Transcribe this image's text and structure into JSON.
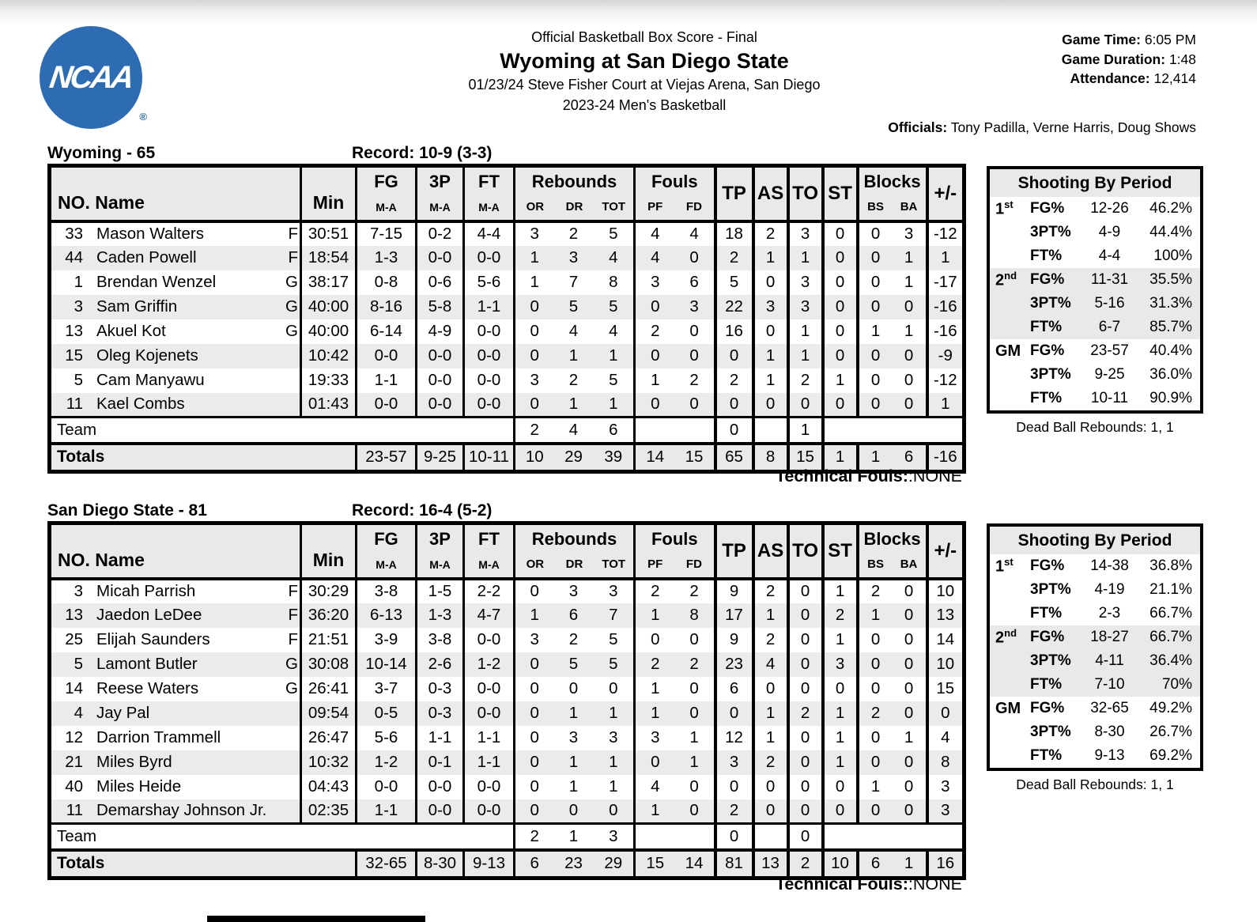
{
  "header": {
    "doc_type": "Official Basketball Box Score - Final",
    "title": "Wyoming at San Diego State",
    "venue_line": "01/23/24 Steve Fisher Court at Viejas Arena, San Diego",
    "season_line": "2023-24 Men's Basketball",
    "game_time_label": "Game Time:",
    "game_time": "6:05 PM",
    "game_duration_label": "Game Duration:",
    "game_duration": "1:48",
    "attendance_label": "Attendance:",
    "attendance": "12,414",
    "officials_label": "Officials:",
    "officials": "Tony Padilla, Verne Harris, Doug Shows",
    "logo_text": "NCAA",
    "logo_reg": "®",
    "logo_color": "#2d6cb3"
  },
  "columns": {
    "no_name": "NO. Name",
    "min": "Min",
    "fg": "FG",
    "p3": "3P",
    "ft": "FT",
    "ma": "M-A",
    "rebounds": "Rebounds",
    "or": "OR",
    "dr": "DR",
    "tot": "TOT",
    "fouls": "Fouls",
    "pf": "PF",
    "fd": "FD",
    "tp": "TP",
    "as": "AS",
    "to": "TO",
    "st": "ST",
    "blocks": "Blocks",
    "bs": "BS",
    "ba": "BA",
    "pm": "+/-"
  },
  "teams": [
    {
      "name_score": "Wyoming - 65",
      "record": "Record: 10-9 (3-3)",
      "players": [
        {
          "no": "33",
          "name": "Mason Walters",
          "pos": "F",
          "min": "30:51",
          "fg": "7-15",
          "p3": "0-2",
          "ft": "4-4",
          "or": "3",
          "dr": "2",
          "tot": "5",
          "pf": "4",
          "fd": "4",
          "tp": "18",
          "as": "2",
          "to": "3",
          "st": "0",
          "bs": "0",
          "ba": "3",
          "pm": "-12"
        },
        {
          "no": "44",
          "name": "Caden Powell",
          "pos": "F",
          "min": "18:54",
          "fg": "1-3",
          "p3": "0-0",
          "ft": "0-0",
          "or": "1",
          "dr": "3",
          "tot": "4",
          "pf": "4",
          "fd": "0",
          "tp": "2",
          "as": "1",
          "to": "1",
          "st": "0",
          "bs": "0",
          "ba": "1",
          "pm": "1"
        },
        {
          "no": "1",
          "name": "Brendan Wenzel",
          "pos": "G",
          "min": "38:17",
          "fg": "0-8",
          "p3": "0-6",
          "ft": "5-6",
          "or": "1",
          "dr": "7",
          "tot": "8",
          "pf": "3",
          "fd": "6",
          "tp": "5",
          "as": "0",
          "to": "3",
          "st": "0",
          "bs": "0",
          "ba": "1",
          "pm": "-17"
        },
        {
          "no": "3",
          "name": "Sam Griffin",
          "pos": "G",
          "min": "40:00",
          "fg": "8-16",
          "p3": "5-8",
          "ft": "1-1",
          "or": "0",
          "dr": "5",
          "tot": "5",
          "pf": "0",
          "fd": "3",
          "tp": "22",
          "as": "3",
          "to": "3",
          "st": "0",
          "bs": "0",
          "ba": "0",
          "pm": "-16"
        },
        {
          "no": "13",
          "name": "Akuel Kot",
          "pos": "G",
          "min": "40:00",
          "fg": "6-14",
          "p3": "4-9",
          "ft": "0-0",
          "or": "0",
          "dr": "4",
          "tot": "4",
          "pf": "2",
          "fd": "0",
          "tp": "16",
          "as": "0",
          "to": "1",
          "st": "0",
          "bs": "1",
          "ba": "1",
          "pm": "-16"
        },
        {
          "no": "15",
          "name": "Oleg Kojenets",
          "pos": "",
          "min": "10:42",
          "fg": "0-0",
          "p3": "0-0",
          "ft": "0-0",
          "or": "0",
          "dr": "1",
          "tot": "1",
          "pf": "0",
          "fd": "0",
          "tp": "0",
          "as": "1",
          "to": "1",
          "st": "0",
          "bs": "0",
          "ba": "0",
          "pm": "-9"
        },
        {
          "no": "5",
          "name": "Cam Manyawu",
          "pos": "",
          "min": "19:33",
          "fg": "1-1",
          "p3": "0-0",
          "ft": "0-0",
          "or": "3",
          "dr": "2",
          "tot": "5",
          "pf": "1",
          "fd": "2",
          "tp": "2",
          "as": "1",
          "to": "2",
          "st": "1",
          "bs": "0",
          "ba": "0",
          "pm": "-12"
        },
        {
          "no": "11",
          "name": "Kael Combs",
          "pos": "",
          "min": "01:43",
          "fg": "0-0",
          "p3": "0-0",
          "ft": "0-0",
          "or": "0",
          "dr": "1",
          "tot": "1",
          "pf": "0",
          "fd": "0",
          "tp": "0",
          "as": "0",
          "to": "0",
          "st": "0",
          "bs": "0",
          "ba": "0",
          "pm": "1"
        }
      ],
      "team_row": {
        "label": "Team",
        "or": "2",
        "dr": "4",
        "tot": "6",
        "tp": "0",
        "to": "1"
      },
      "totals": {
        "label": "Totals",
        "fg": "23-57",
        "p3": "9-25",
        "ft": "10-11",
        "or": "10",
        "dr": "29",
        "tot": "39",
        "pf": "14",
        "fd": "15",
        "tp": "65",
        "as": "8",
        "to": "15",
        "st": "1",
        "bs": "1",
        "ba": "6",
        "pm": "-16"
      },
      "technical_bold": "Technical Fouls:",
      "technical_value": ":NONE",
      "shooting": {
        "title": "Shooting By Period",
        "rows": [
          {
            "period": "1",
            "sup": "st",
            "stat": "FG%",
            "ma": "12-26",
            "pct": "46.2%",
            "shade": false
          },
          {
            "period": "",
            "sup": "",
            "stat": "3PT%",
            "ma": "4-9",
            "pct": "44.4%",
            "shade": false
          },
          {
            "period": "",
            "sup": "",
            "stat": "FT%",
            "ma": "4-4",
            "pct": "100%",
            "shade": false
          },
          {
            "period": "2",
            "sup": "nd",
            "stat": "FG%",
            "ma": "11-31",
            "pct": "35.5%",
            "shade": true
          },
          {
            "period": "",
            "sup": "",
            "stat": "3PT%",
            "ma": "5-16",
            "pct": "31.3%",
            "shade": true
          },
          {
            "period": "",
            "sup": "",
            "stat": "FT%",
            "ma": "6-7",
            "pct": "85.7%",
            "shade": true
          },
          {
            "period": "GM",
            "sup": "",
            "stat": "FG%",
            "ma": "23-57",
            "pct": "40.4%",
            "shade": false
          },
          {
            "period": "",
            "sup": "",
            "stat": "3PT%",
            "ma": "9-25",
            "pct": "36.0%",
            "shade": false
          },
          {
            "period": "",
            "sup": "",
            "stat": "FT%",
            "ma": "10-11",
            "pct": "90.9%",
            "shade": false
          }
        ]
      },
      "dead_ball": "Dead Ball Rebounds: 1, 1"
    },
    {
      "name_score": "San Diego State - 81",
      "record": "Record: 16-4 (5-2)",
      "players": [
        {
          "no": "3",
          "name": "Micah Parrish",
          "pos": "F",
          "min": "30:29",
          "fg": "3-8",
          "p3": "1-5",
          "ft": "2-2",
          "or": "0",
          "dr": "3",
          "tot": "3",
          "pf": "2",
          "fd": "2",
          "tp": "9",
          "as": "2",
          "to": "0",
          "st": "1",
          "bs": "2",
          "ba": "0",
          "pm": "10"
        },
        {
          "no": "13",
          "name": "Jaedon LeDee",
          "pos": "F",
          "min": "36:20",
          "fg": "6-13",
          "p3": "1-3",
          "ft": "4-7",
          "or": "1",
          "dr": "6",
          "tot": "7",
          "pf": "1",
          "fd": "8",
          "tp": "17",
          "as": "1",
          "to": "0",
          "st": "2",
          "bs": "1",
          "ba": "0",
          "pm": "13"
        },
        {
          "no": "25",
          "name": "Elijah Saunders",
          "pos": "F",
          "min": "21:51",
          "fg": "3-9",
          "p3": "3-8",
          "ft": "0-0",
          "or": "3",
          "dr": "2",
          "tot": "5",
          "pf": "0",
          "fd": "0",
          "tp": "9",
          "as": "2",
          "to": "0",
          "st": "1",
          "bs": "0",
          "ba": "0",
          "pm": "14"
        },
        {
          "no": "5",
          "name": "Lamont Butler",
          "pos": "G",
          "min": "30:08",
          "fg": "10-14",
          "p3": "2-6",
          "ft": "1-2",
          "or": "0",
          "dr": "5",
          "tot": "5",
          "pf": "2",
          "fd": "2",
          "tp": "23",
          "as": "4",
          "to": "0",
          "st": "3",
          "bs": "0",
          "ba": "0",
          "pm": "10"
        },
        {
          "no": "14",
          "name": "Reese Waters",
          "pos": "G",
          "min": "26:41",
          "fg": "3-7",
          "p3": "0-3",
          "ft": "0-0",
          "or": "0",
          "dr": "0",
          "tot": "0",
          "pf": "1",
          "fd": "0",
          "tp": "6",
          "as": "0",
          "to": "0",
          "st": "0",
          "bs": "0",
          "ba": "0",
          "pm": "15"
        },
        {
          "no": "4",
          "name": "Jay Pal",
          "pos": "",
          "min": "09:54",
          "fg": "0-5",
          "p3": "0-3",
          "ft": "0-0",
          "or": "0",
          "dr": "1",
          "tot": "1",
          "pf": "1",
          "fd": "0",
          "tp": "0",
          "as": "1",
          "to": "2",
          "st": "1",
          "bs": "2",
          "ba": "0",
          "pm": "0"
        },
        {
          "no": "12",
          "name": "Darrion Trammell",
          "pos": "",
          "min": "26:47",
          "fg": "5-6",
          "p3": "1-1",
          "ft": "1-1",
          "or": "0",
          "dr": "3",
          "tot": "3",
          "pf": "3",
          "fd": "1",
          "tp": "12",
          "as": "1",
          "to": "0",
          "st": "1",
          "bs": "0",
          "ba": "1",
          "pm": "4"
        },
        {
          "no": "21",
          "name": "Miles Byrd",
          "pos": "",
          "min": "10:32",
          "fg": "1-2",
          "p3": "0-1",
          "ft": "1-1",
          "or": "0",
          "dr": "1",
          "tot": "1",
          "pf": "0",
          "fd": "1",
          "tp": "3",
          "as": "2",
          "to": "0",
          "st": "1",
          "bs": "0",
          "ba": "0",
          "pm": "8"
        },
        {
          "no": "40",
          "name": "Miles Heide",
          "pos": "",
          "min": "04:43",
          "fg": "0-0",
          "p3": "0-0",
          "ft": "0-0",
          "or": "0",
          "dr": "1",
          "tot": "1",
          "pf": "4",
          "fd": "0",
          "tp": "0",
          "as": "0",
          "to": "0",
          "st": "0",
          "bs": "1",
          "ba": "0",
          "pm": "3"
        },
        {
          "no": "11",
          "name": "Demarshay Johnson Jr.",
          "pos": "",
          "min": "02:35",
          "fg": "1-1",
          "p3": "0-0",
          "ft": "0-0",
          "or": "0",
          "dr": "0",
          "tot": "0",
          "pf": "1",
          "fd": "0",
          "tp": "2",
          "as": "0",
          "to": "0",
          "st": "0",
          "bs": "0",
          "ba": "0",
          "pm": "3"
        }
      ],
      "team_row": {
        "label": "Team",
        "or": "2",
        "dr": "1",
        "tot": "3",
        "tp": "0",
        "to": "0"
      },
      "totals": {
        "label": "Totals",
        "fg": "32-65",
        "p3": "8-30",
        "ft": "9-13",
        "or": "6",
        "dr": "23",
        "tot": "29",
        "pf": "15",
        "fd": "14",
        "tp": "81",
        "as": "13",
        "to": "2",
        "st": "10",
        "bs": "6",
        "ba": "1",
        "pm": "16"
      },
      "technical_bold": "Technical Fouls:",
      "technical_value": ":NONE",
      "shooting": {
        "title": "Shooting By Period",
        "rows": [
          {
            "period": "1",
            "sup": "st",
            "stat": "FG%",
            "ma": "14-38",
            "pct": "36.8%",
            "shade": false
          },
          {
            "period": "",
            "sup": "",
            "stat": "3PT%",
            "ma": "4-19",
            "pct": "21.1%",
            "shade": false
          },
          {
            "period": "",
            "sup": "",
            "stat": "FT%",
            "ma": "2-3",
            "pct": "66.7%",
            "shade": false
          },
          {
            "period": "2",
            "sup": "nd",
            "stat": "FG%",
            "ma": "18-27",
            "pct": "66.7%",
            "shade": true
          },
          {
            "period": "",
            "sup": "",
            "stat": "3PT%",
            "ma": "4-11",
            "pct": "36.4%",
            "shade": true
          },
          {
            "period": "",
            "sup": "",
            "stat": "FT%",
            "ma": "7-10",
            "pct": "70%",
            "shade": true
          },
          {
            "period": "GM",
            "sup": "",
            "stat": "FG%",
            "ma": "32-65",
            "pct": "49.2%",
            "shade": false
          },
          {
            "period": "",
            "sup": "",
            "stat": "3PT%",
            "ma": "8-30",
            "pct": "26.7%",
            "shade": false
          },
          {
            "period": "",
            "sup": "",
            "stat": "FT%",
            "ma": "9-13",
            "pct": "69.2%",
            "shade": false
          }
        ]
      },
      "dead_ball": "Dead Ball Rebounds: 1, 1"
    }
  ]
}
